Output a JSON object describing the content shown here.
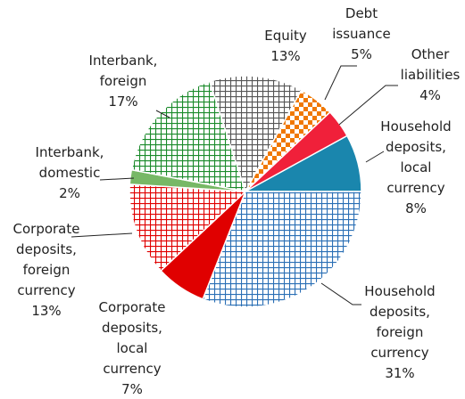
{
  "chart_data": {
    "type": "pie",
    "categories": [
      "Household deposits, local currency",
      "Household deposits, foreign currency",
      "Corporate deposits, local currency",
      "Corporate deposits, foreign currency",
      "Interbank, domestic",
      "Interbank, foreign",
      "Equity",
      "Debt issuance",
      "Other liabilities"
    ],
    "values": [
      8,
      31,
      7,
      13,
      2,
      17,
      13,
      5,
      4
    ],
    "value_labels": [
      "8%",
      "31%",
      "7%",
      "13%",
      "2%",
      "17%",
      "13%",
      "5%",
      "4%"
    ],
    "colors": [
      "#1a86ad",
      "#2a6fb5",
      "#e00000",
      "#e00000",
      "#77b866",
      "#1a8a2a",
      "#555555",
      "#f07800",
      "#f0203a"
    ],
    "patterns": [
      "solid",
      "grid",
      "solid",
      "grid",
      "solid",
      "grid",
      "grid",
      "checker",
      "solid"
    ]
  }
}
